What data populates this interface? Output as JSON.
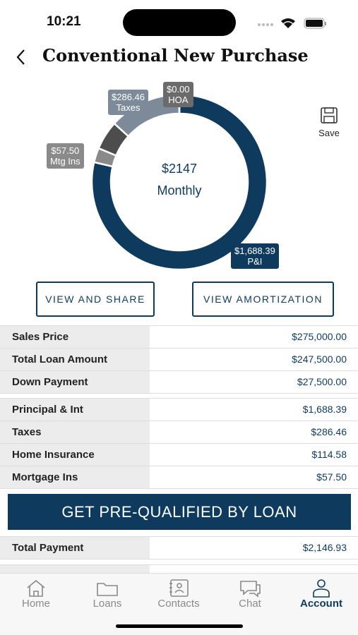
{
  "status_bar": {
    "time": "10:21"
  },
  "header": {
    "title": "Conventional New Purchase"
  },
  "save_label": "Save",
  "donut": {
    "center_value": "$2147",
    "center_label": "Monthly",
    "segments": [
      {
        "name": "P&I",
        "value": 1688.39,
        "label": "$1,688.39",
        "color": "#0e3a5e"
      },
      {
        "name": "Mtg Ins",
        "value": 57.5,
        "label": "$57.50",
        "color": "#8a8a8a"
      },
      {
        "value": 114.58,
        "color": "#4d4d4d"
      },
      {
        "name": "Taxes",
        "value": 286.46,
        "label": "$286.46",
        "color": "#7d8a9a"
      },
      {
        "name": "HOA",
        "value": 0,
        "label": "$0.00",
        "color": "#6b6b6b"
      }
    ]
  },
  "buttons": [
    "VIEW AND SHARE",
    "VIEW AMORTIZATION"
  ],
  "table_groups": [
    [
      [
        "Sales Price",
        "$275,000.00"
      ],
      [
        "Total Loan Amount",
        "$247,500.00"
      ],
      [
        "Down Payment",
        "$27,500.00"
      ]
    ],
    [
      [
        "Principal & Int",
        "$1,688.39"
      ],
      [
        "Taxes",
        "$286.46"
      ],
      [
        "Home Insurance",
        "$114.58"
      ],
      [
        "Mortgage Ins",
        "$57.50"
      ]
    ]
  ],
  "cta": "GET PRE-QUALIFIED BY LOAN",
  "summary": [
    [
      "Total Payment",
      "$2,146.93"
    ]
  ],
  "tabs": [
    "Home",
    "Loans",
    "Contacts",
    "Chat",
    "Account"
  ]
}
